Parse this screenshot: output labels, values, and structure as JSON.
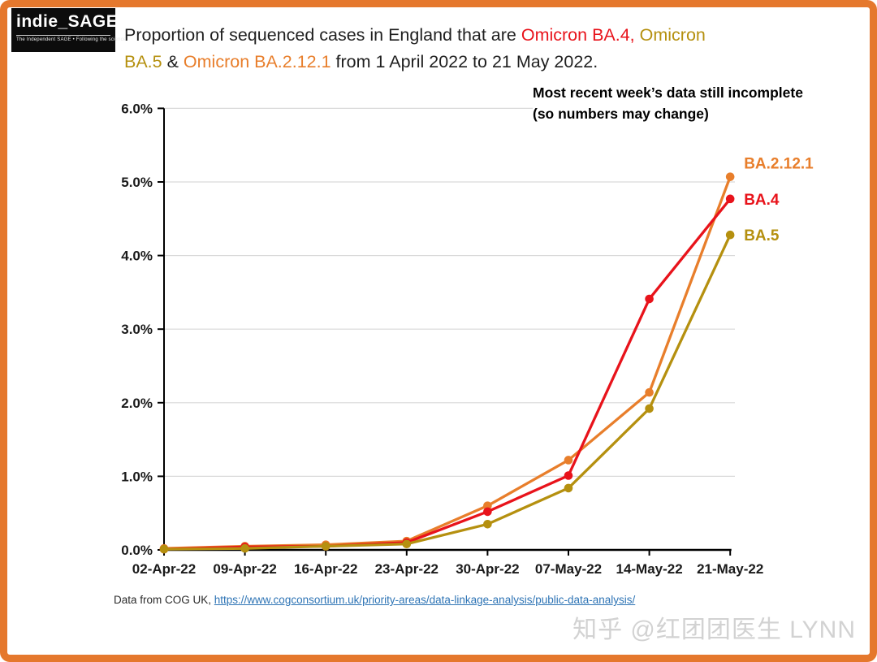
{
  "page": {
    "border_color": "#E5782D",
    "background": "#FFFFFF"
  },
  "logo": {
    "name": "indie_SAGE",
    "tagline": "The Independent SAGE • Following the science"
  },
  "title": {
    "line1": [
      {
        "text": "Proportion of sequenced cases in England that are ",
        "color": "#1F1F1F"
      },
      {
        "text": "Omicron BA.4,",
        "color": "#E8131B"
      },
      {
        "text": " ",
        "color": "#1F1F1F"
      },
      {
        "text": "Omicron",
        "color": "#B5900F"
      }
    ],
    "line2": [
      {
        "text": "BA.5",
        "color": "#B5900F"
      },
      {
        "text": " & ",
        "color": "#1F1F1F"
      },
      {
        "text": "Omicron BA.2.12.1",
        "color": "#E87E2B"
      },
      {
        "text": " from 1 April 2022 to 21 May 2022.",
        "color": "#1F1F1F"
      }
    ]
  },
  "annotation": {
    "line1": "Most recent week’s data still incomplete",
    "line2": "(so numbers may change)"
  },
  "chart_data": {
    "type": "line",
    "title": "Proportion of sequenced cases in England that are Omicron BA.4, Omicron BA.5 & Omicron BA.2.12.1 from 1 April 2022 to 21 May 2022.",
    "x": [
      "02-Apr-22",
      "09-Apr-22",
      "16-Apr-22",
      "23-Apr-22",
      "30-Apr-22",
      "07-May-22",
      "14-May-22",
      "21-May-22"
    ],
    "series": [
      {
        "name": "BA.2.12.1",
        "color": "#E87E2B",
        "values": [
          0.02,
          0.05,
          0.07,
          0.12,
          0.6,
          1.22,
          2.14,
          5.07
        ]
      },
      {
        "name": "BA.4",
        "color": "#E8131B",
        "values": [
          0.01,
          0.04,
          0.05,
          0.1,
          0.52,
          1.01,
          3.41,
          4.77
        ]
      },
      {
        "name": "BA.5",
        "color": "#B5900F",
        "values": [
          0.01,
          0.02,
          0.05,
          0.08,
          0.35,
          0.84,
          1.92,
          4.28
        ]
      }
    ],
    "xlabel": "",
    "ylabel": "",
    "ylim": [
      0,
      6
    ],
    "ytick_labels": [
      "0.0%",
      "1.0%",
      "2.0%",
      "3.0%",
      "4.0%",
      "5.0%",
      "6.0%"
    ],
    "grid": true,
    "gridline_color": "#D9D9D9",
    "axis_color": "#000000",
    "tick_label_color": "#1a1a1a",
    "legend_position": "labels-at-line-ends"
  },
  "footer": {
    "source_prefix": "Data from COG UK, ",
    "source_link_text": "https://www.cogconsortium.uk/priority-areas/data-linkage-analysis/public-data-analysis/",
    "link_color": "#2E74B5"
  },
  "watermark": {
    "text": "知乎 @红团团医生 LYNN",
    "color": "#D2D2D2"
  }
}
